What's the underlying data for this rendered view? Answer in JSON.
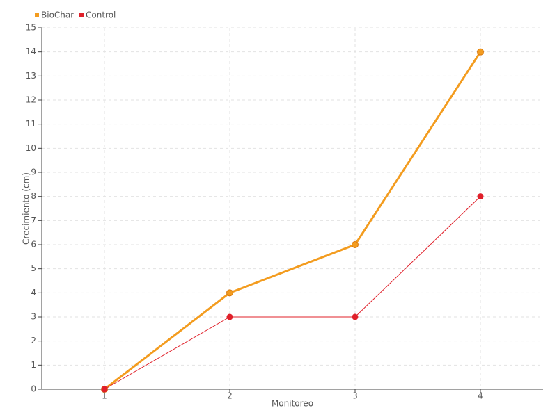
{
  "chart_data": {
    "type": "line",
    "categories": [
      "1",
      "2",
      "3",
      "4"
    ],
    "xlabel": "Monitoreo",
    "ylabel": "Crecimiento (cm)",
    "series": [
      {
        "name": "BioChar",
        "color": "#f39c1f",
        "values": [
          0,
          4,
          6,
          14
        ]
      },
      {
        "name": "Control",
        "color": "#e0202a",
        "values": [
          0,
          3,
          3,
          8
        ]
      }
    ],
    "ylim": [
      0,
      15
    ],
    "yticks": [
      0,
      1,
      2,
      3,
      4,
      5,
      6,
      7,
      8,
      9,
      10,
      11,
      12,
      13,
      14,
      15
    ],
    "grid": true,
    "legend": "top-left"
  }
}
